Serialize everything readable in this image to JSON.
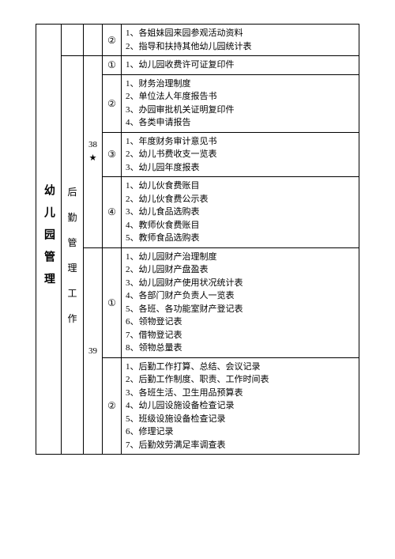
{
  "col1": "幼儿园管理",
  "col2": "后勤管理工作",
  "rows": [
    {
      "num": "",
      "mark": "②",
      "items": [
        "1、各姐妹园来园参观活动资料",
        "2、指导和扶持其他幼儿园统计表"
      ]
    },
    {
      "num": "",
      "mark": "①",
      "items": [
        "1、幼儿园收费许可证复印件"
      ]
    },
    {
      "num": "",
      "mark": "②",
      "items": [
        "1、财务治理制度",
        "2、单位法人年度报告书",
        "3、办园审批机关证明复印件",
        "4、各类申请报告"
      ]
    },
    {
      "num": "38★",
      "mark": "③",
      "items": [
        "1、年度财务审计意见书",
        "2、幼儿书费收支一览表",
        "3、幼儿园年度报表"
      ]
    },
    {
      "num": "",
      "mark": "④",
      "items": [
        "1、幼儿伙食费账目",
        "2、幼儿伙食费公示表",
        "3、幼儿食品选购表",
        "4、教师伙食费账目",
        "5、教师食品选购表"
      ]
    },
    {
      "num": "39",
      "mark": "①",
      "items": [
        "1、幼儿园财产治理制度",
        "2、幼儿园财产盘盈表",
        "3、幼儿园财产使用状况统计表",
        "4、各部门财产负责人一览表",
        "5、各班、各功能室财产登记表",
        "6、领物登记表",
        "7、借物登记表",
        "8、领物总量表"
      ]
    },
    {
      "num": "",
      "mark": "②",
      "items": [
        "1、后勤工作打算、总结、会议记录",
        "2、后勤工作制度、职责、工作时间表",
        "3、各班生活、卫生用品预算表",
        "4、幼儿园设施设备检查记录",
        "5、班级设施设备检查记录",
        "6、修理记录",
        "7、后勤效劳满足率调查表"
      ]
    }
  ]
}
